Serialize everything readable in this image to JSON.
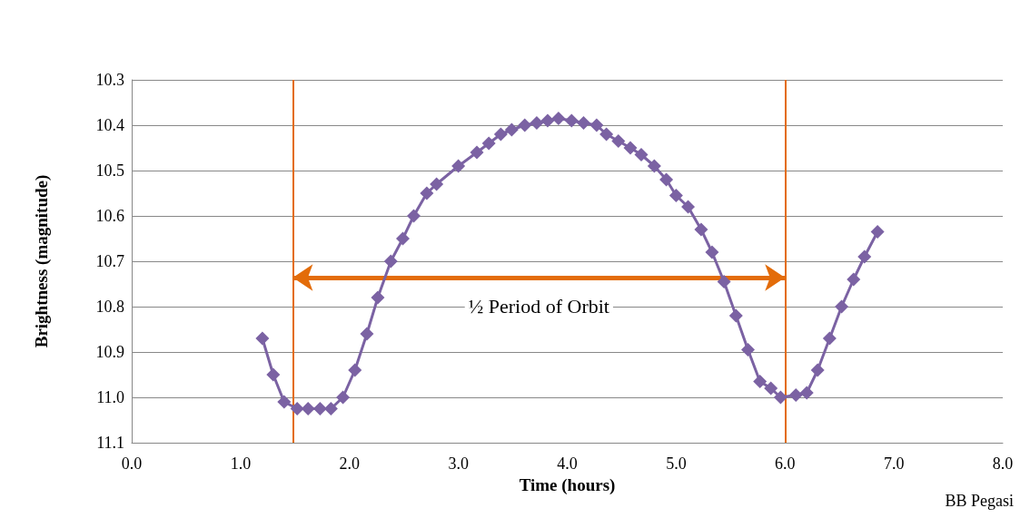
{
  "chart_data": {
    "type": "line",
    "xlabel": "Time (hours)",
    "ylabel": "Brightness (magnitude)",
    "x": [
      1.2,
      1.3,
      1.4,
      1.52,
      1.62,
      1.73,
      1.83,
      1.94,
      2.05,
      2.16,
      2.26,
      2.38,
      2.49,
      2.59,
      2.71,
      2.8,
      3.0,
      3.17,
      3.28,
      3.39,
      3.49,
      3.61,
      3.72,
      3.82,
      3.92,
      4.04,
      4.15,
      4.27,
      4.36,
      4.47,
      4.58,
      4.68,
      4.8,
      4.91,
      5.0,
      5.11,
      5.23,
      5.33,
      5.44,
      5.55,
      5.66,
      5.77,
      5.87,
      5.96,
      6.1,
      6.2,
      6.3,
      6.41,
      6.52,
      6.63,
      6.73,
      6.85
    ],
    "series": [
      {
        "color": "#7b62a3",
        "values": [
          10.87,
          10.95,
          11.01,
          11.025,
          11.025,
          11.025,
          11.025,
          11.0,
          10.94,
          10.86,
          10.78,
          10.7,
          10.65,
          10.6,
          10.55,
          10.53,
          10.49,
          10.46,
          10.44,
          10.42,
          10.41,
          10.4,
          10.395,
          10.39,
          10.385,
          10.39,
          10.395,
          10.4,
          10.42,
          10.435,
          10.45,
          10.465,
          10.49,
          10.52,
          10.555,
          10.58,
          10.63,
          10.68,
          10.745,
          10.82,
          10.895,
          10.965,
          10.98,
          11.0,
          10.995,
          10.99,
          10.94,
          10.87,
          10.8,
          10.74,
          10.69,
          10.635
        ]
      }
    ],
    "xlim": [
      0,
      8
    ],
    "xticks": [
      {
        "value": 0,
        "label": "0.0"
      },
      {
        "value": 1,
        "label": "1.0"
      },
      {
        "value": 2,
        "label": "2.0"
      },
      {
        "value": 3,
        "label": "3.0"
      },
      {
        "value": 4,
        "label": "4.0"
      },
      {
        "value": 5,
        "label": "5.0"
      },
      {
        "value": 6,
        "label": "6.0"
      },
      {
        "value": 7,
        "label": "7.0"
      },
      {
        "value": 8,
        "label": "8.0"
      }
    ],
    "ylim": [
      11.1,
      10.3
    ],
    "yticks": [
      10.3,
      10.4,
      10.5,
      10.6,
      10.7,
      10.8,
      10.9,
      {
        "value": 11,
        "label": "11.0"
      },
      11.1
    ],
    "grid": "y",
    "marker": "diamond",
    "line_style": "solid",
    "ref_lines": [
      {
        "axis": "x",
        "value": 1.48,
        "color": "#e36c09"
      },
      {
        "axis": "x",
        "value": 6.0,
        "color": "#e36c09"
      }
    ],
    "annotations": [
      "½ Period of Orbit",
      "BB Pegasi"
    ]
  }
}
